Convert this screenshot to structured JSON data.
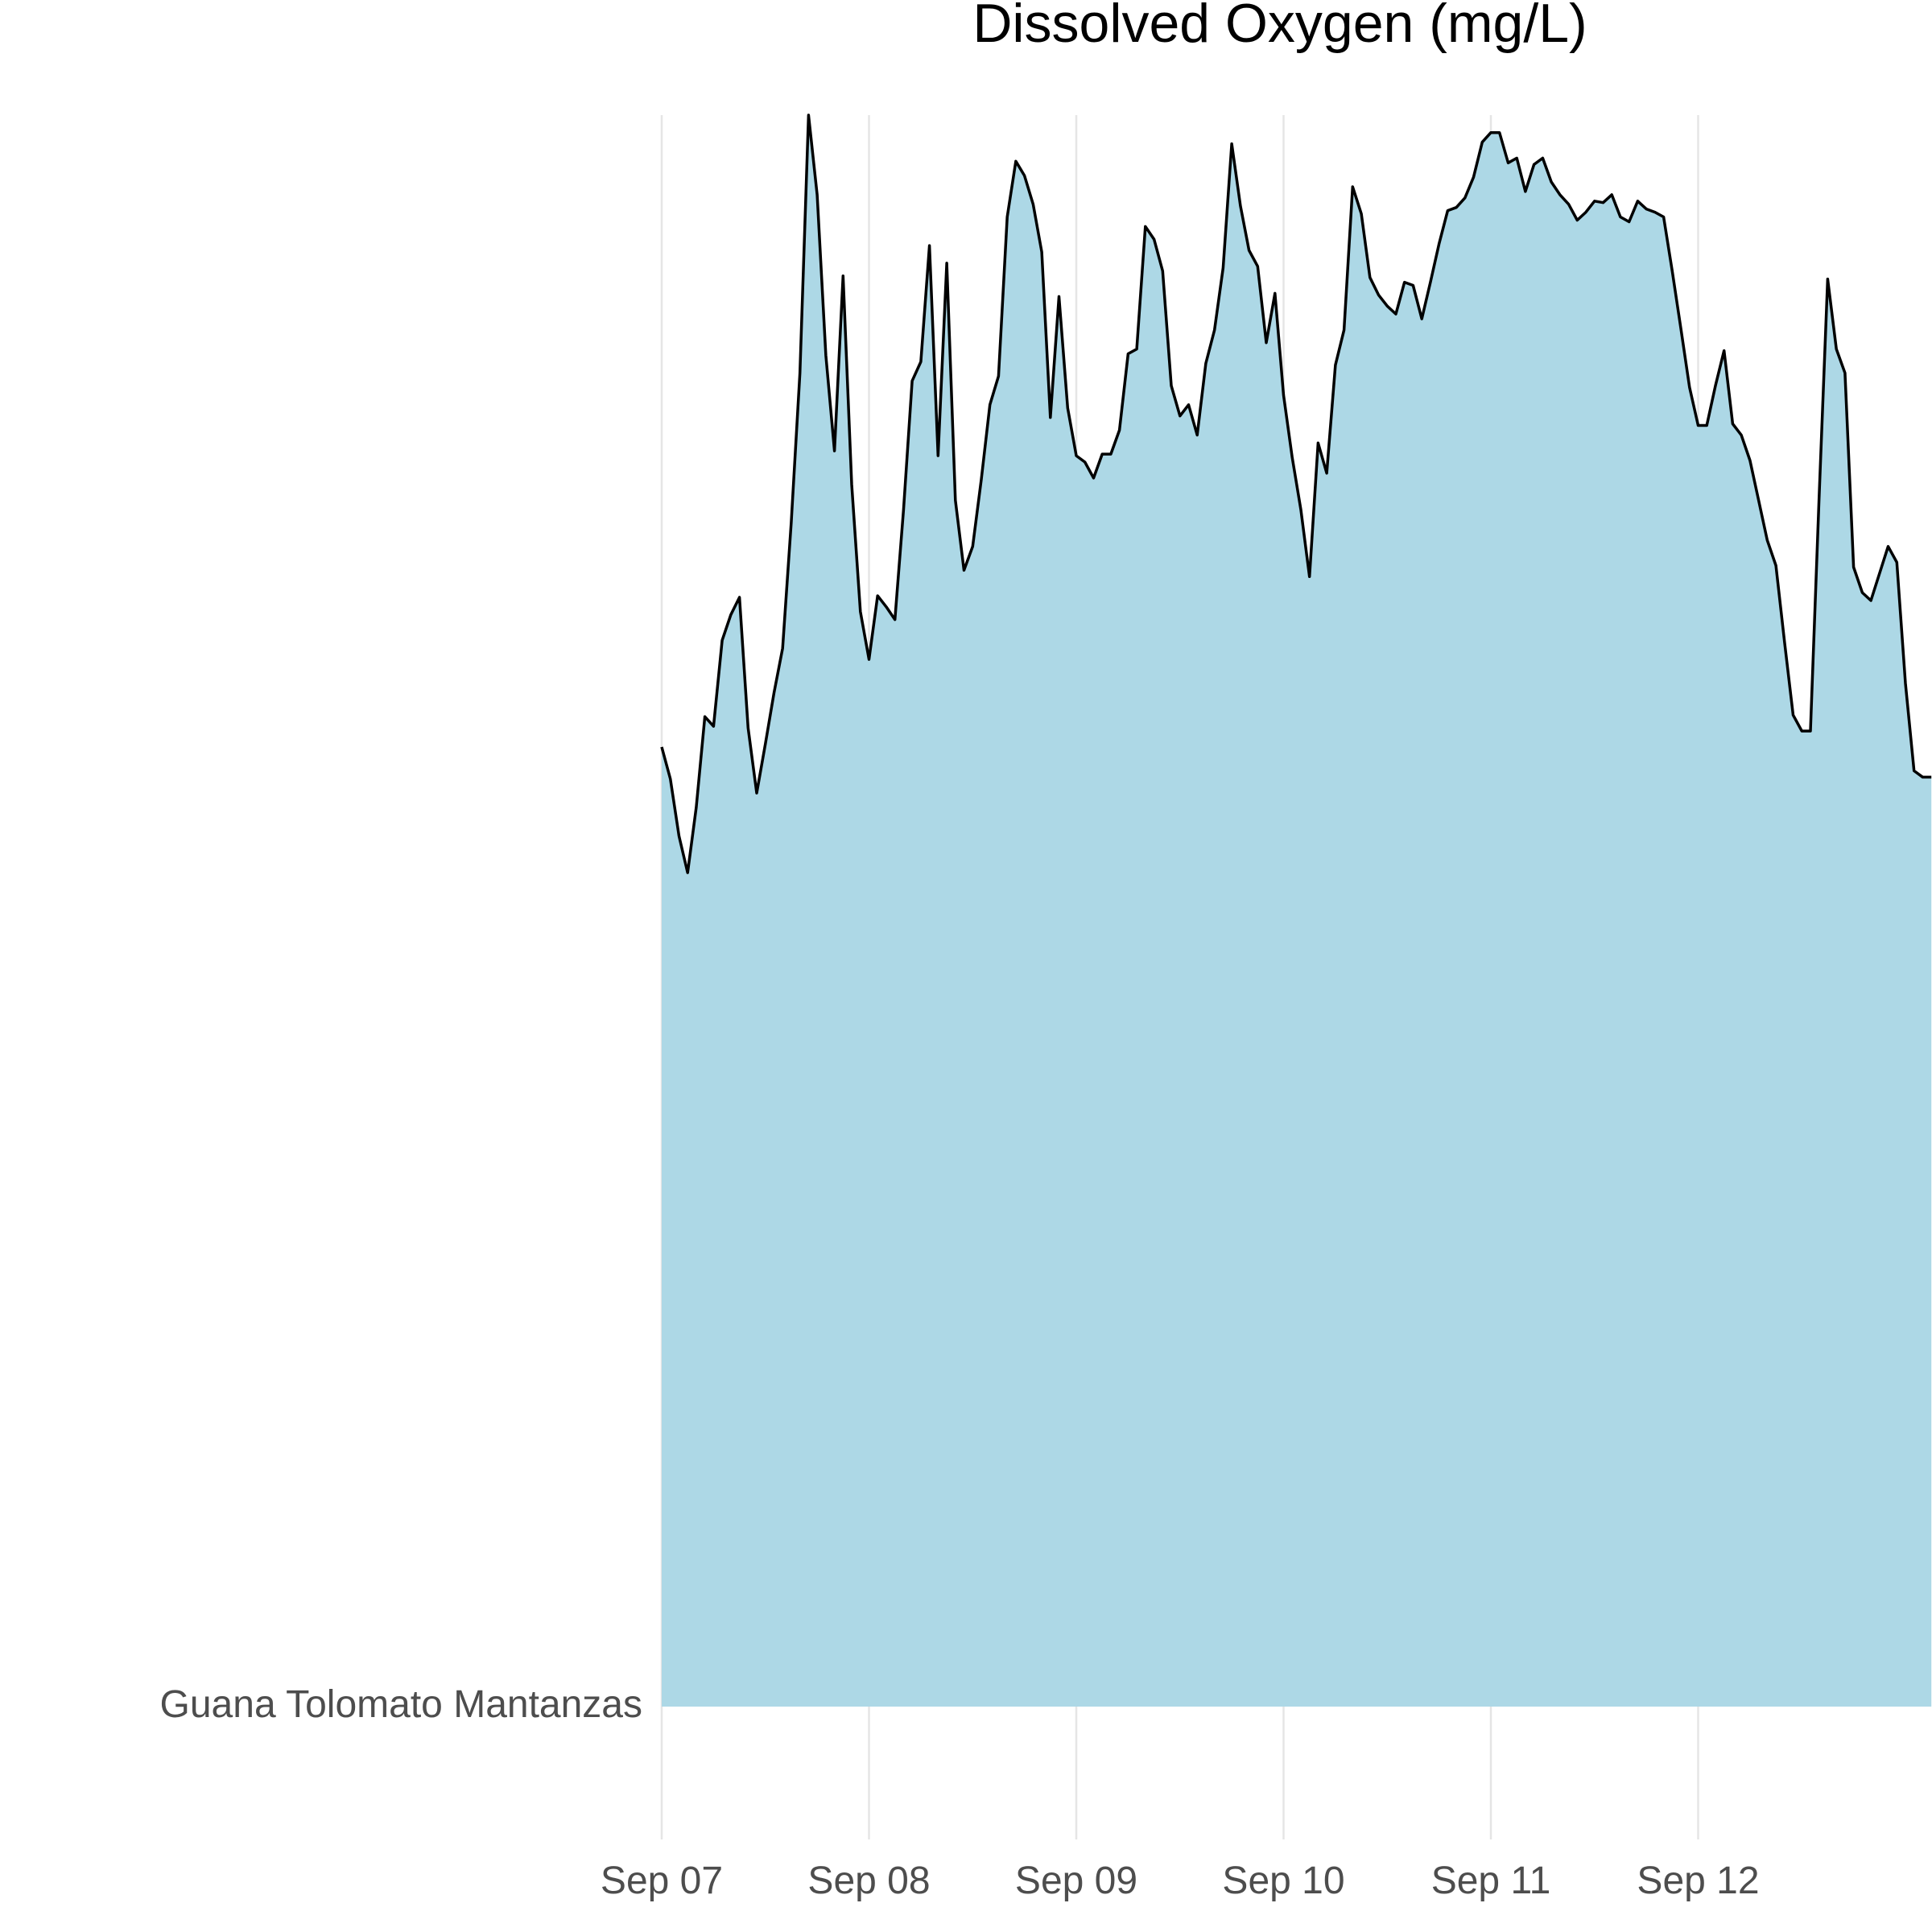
{
  "chart_data": {
    "type": "area",
    "title": "Dissolved Oxygen (mg/L)",
    "category": "Guana Tolomato Mantanzas",
    "x_ticks": [
      "Sep 07",
      "Sep 08",
      "Sep 09",
      "Sep 10",
      "Sep 11",
      "Sep 12"
    ],
    "x_range": [
      "Sep 07",
      "Sep 12 23:00"
    ],
    "y_range": [
      0,
      1
    ],
    "y_unit_note": "ridgeline height relative to maximum",
    "grid": "vertical",
    "colors": {
      "fill": "#ADD8E6",
      "line": "#000000",
      "grid": "#e5e5e5"
    },
    "series": [
      {
        "x_step_hours": 1,
        "x_start": "Sep 07 00:00",
        "values": [
          0.603,
          0.583,
          0.547,
          0.524,
          0.565,
          0.622,
          0.616,
          0.67,
          0.686,
          0.697,
          0.615,
          0.574,
          0.605,
          0.637,
          0.665,
          0.744,
          0.838,
          1.0,
          0.95,
          0.849,
          0.789,
          0.899,
          0.768,
          0.688,
          0.658,
          0.698,
          0.691,
          0.683,
          0.752,
          0.833,
          0.845,
          0.918,
          0.786,
          0.907,
          0.758,
          0.714,
          0.729,
          0.771,
          0.818,
          0.836,
          0.936,
          0.971,
          0.962,
          0.944,
          0.914,
          0.81,
          0.886,
          0.816,
          0.786,
          0.782,
          0.772,
          0.787,
          0.787,
          0.802,
          0.85,
          0.853,
          0.93,
          0.922,
          0.902,
          0.83,
          0.811,
          0.818,
          0.799,
          0.844,
          0.865,
          0.904,
          0.982,
          0.943,
          0.915,
          0.905,
          0.857,
          0.888,
          0.824,
          0.785,
          0.752,
          0.71,
          0.794,
          0.775,
          0.843,
          0.865,
          0.955,
          0.938,
          0.898,
          0.887,
          0.88,
          0.875,
          0.895,
          0.893,
          0.872,
          0.895,
          0.919,
          0.94,
          0.942,
          0.948,
          0.961,
          0.983,
          0.989,
          0.989,
          0.97,
          0.973,
          0.952,
          0.969,
          0.973,
          0.958,
          0.95,
          0.944,
          0.934,
          0.939,
          0.946,
          0.945,
          0.95,
          0.936,
          0.933,
          0.946,
          0.941,
          0.939,
          0.936,
          0.902,
          0.866,
          0.829,
          0.805,
          0.805,
          0.83,
          0.852,
          0.806,
          0.799,
          0.783,
          0.758,
          0.733,
          0.717,
          0.669,
          0.623,
          0.613,
          0.613,
          0.759,
          0.897,
          0.853,
          0.838,
          0.716,
          0.7,
          0.695,
          0.712,
          0.729,
          0.719,
          0.643,
          0.588,
          0.584,
          0.584
        ]
      }
    ]
  }
}
